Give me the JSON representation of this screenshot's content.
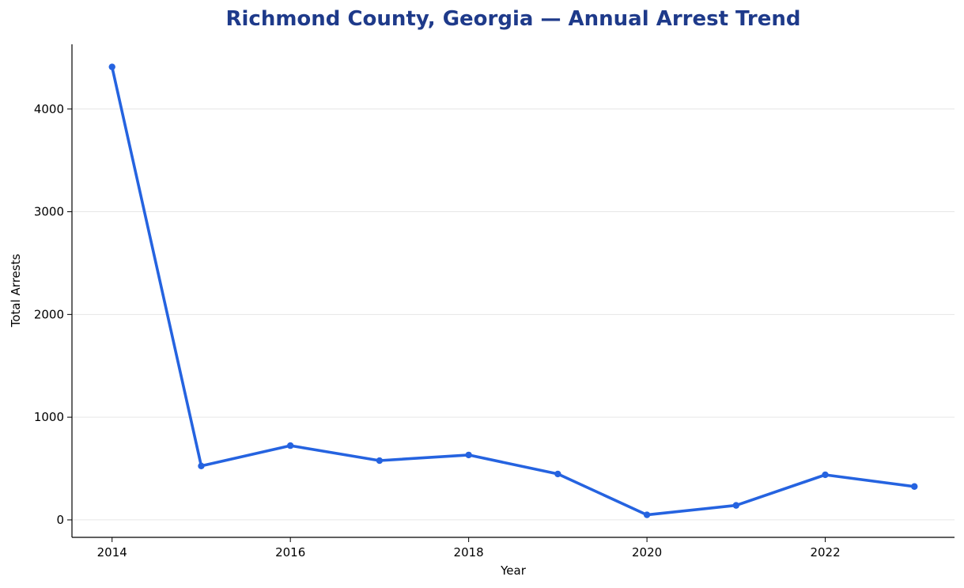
{
  "chart_data": {
    "type": "line",
    "title": "Richmond County, Georgia — Annual Arrest Trend",
    "xlabel": "Year",
    "ylabel": "Total Arrests",
    "x": [
      2014,
      2015,
      2016,
      2017,
      2018,
      2019,
      2020,
      2021,
      2022,
      2023
    ],
    "series": [
      {
        "values": [
          4410,
          525,
          723,
          577,
          632,
          447,
          49,
          141,
          439,
          325
        ]
      }
    ],
    "x_ticks": [
      "2014",
      "2016",
      "2018",
      "2020",
      "2022"
    ],
    "y_ticks": [
      "0",
      "1000",
      "2000",
      "3000",
      "4000"
    ],
    "xlim": [
      2013.55,
      2023.45
    ],
    "ylim": [
      -170,
      4630
    ],
    "grid": "horizontal",
    "colors": {
      "line": "#2563e0",
      "title": "#1e3a8a",
      "grid": "#e6e6e6"
    }
  }
}
